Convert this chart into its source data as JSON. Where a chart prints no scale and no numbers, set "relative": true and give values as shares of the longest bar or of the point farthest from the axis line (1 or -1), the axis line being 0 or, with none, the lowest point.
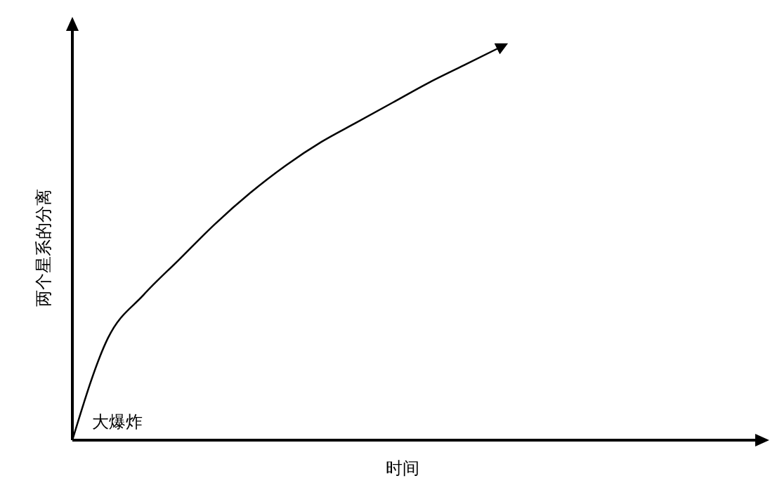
{
  "chart_data": {
    "type": "line",
    "relative": true,
    "xlabel": "时间",
    "ylabel": "两个星系的分离",
    "annotations": [
      "大爆炸"
    ],
    "categories": [
      null,
      null,
      null,
      null,
      null,
      null,
      null,
      null,
      null,
      null,
      null,
      null,
      null
    ],
    "series": [
      {
        "color": "#000000",
        "values": [
          0,
          0.26,
          0.37,
          0.46,
          0.55,
          0.63,
          0.7,
          0.76,
          0.81,
          0.86,
          0.91,
          0.955,
          1
        ]
      }
    ],
    "marker": "none",
    "line_style": "solid"
  }
}
